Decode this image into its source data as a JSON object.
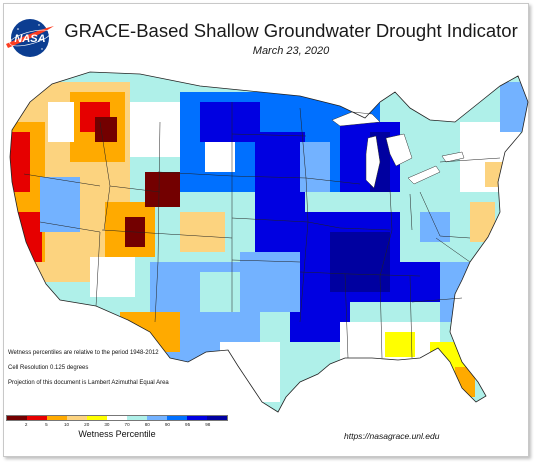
{
  "header": {
    "title": "GRACE-Based Shallow Groundwater Drought Indicator",
    "date": "March 23, 2020"
  },
  "logo": {
    "text": "NASA",
    "icon": "nasa-meatball-icon"
  },
  "notes": [
    "Wetness percentiles are relative to the period 1948-2012",
    "Cell Resolution 0.125 degrees",
    "Projection of this document is Lambert Azimuthal Equal Area"
  ],
  "legend": {
    "title": "Wetness Percentile",
    "ticks": [
      "2",
      "5",
      "10",
      "20",
      "30",
      "70",
      "80",
      "90",
      "95",
      "98"
    ],
    "colors": [
      "#730000",
      "#e60000",
      "#ffaa00",
      "#fcd37f",
      "#ffff00",
      "#ffffff",
      "#aff0e9",
      "#73b2ff",
      "#0070ff",
      "#0000e1",
      "#0000a0"
    ]
  },
  "footer": {
    "url": "https://nasagrace.unl.edu"
  }
}
